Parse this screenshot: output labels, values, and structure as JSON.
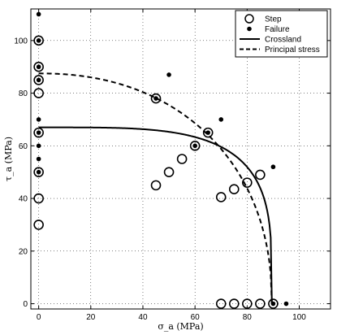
{
  "chart_data": {
    "type": "scatter",
    "xlabel": "σ_a (MPa)",
    "ylabel": "τ_a (MPa)",
    "xlim": [
      -3,
      112
    ],
    "ylim": [
      -2,
      112
    ],
    "xticks": [
      0,
      20,
      40,
      60,
      80,
      100
    ],
    "yticks": [
      0,
      20,
      40,
      60,
      80,
      100
    ],
    "grid": true,
    "grid_style": "dotted",
    "legend_position": "top-right",
    "series": [
      {
        "name": "Step",
        "marker": "open-circle",
        "points": [
          [
            0,
            100
          ],
          [
            0,
            90
          ],
          [
            0,
            85
          ],
          [
            0,
            80
          ],
          [
            0,
            65
          ],
          [
            0,
            50
          ],
          [
            0,
            40
          ],
          [
            0,
            30
          ],
          [
            45,
            78
          ],
          [
            45,
            45
          ],
          [
            50,
            50
          ],
          [
            55,
            55
          ],
          [
            60,
            60
          ],
          [
            65,
            65
          ],
          [
            70,
            40.5
          ],
          [
            75,
            43.5
          ],
          [
            80,
            46
          ],
          [
            85,
            49
          ],
          [
            70,
            0
          ],
          [
            75,
            0
          ],
          [
            80,
            0
          ],
          [
            85,
            0
          ],
          [
            90,
            0
          ]
        ]
      },
      {
        "name": "Failure",
        "marker": "filled-dot",
        "points": [
          [
            0,
            110
          ],
          [
            0,
            100
          ],
          [
            0,
            90
          ],
          [
            0,
            85
          ],
          [
            0,
            70
          ],
          [
            0,
            65
          ],
          [
            0,
            60
          ],
          [
            0,
            55
          ],
          [
            0,
            50
          ],
          [
            45,
            78
          ],
          [
            50,
            87
          ],
          [
            60,
            60
          ],
          [
            65,
            65
          ],
          [
            70,
            70
          ],
          [
            90,
            52
          ],
          [
            90,
            0
          ],
          [
            95,
            0
          ]
        ]
      },
      {
        "name": "Crossland",
        "line": "solid",
        "curve": {
          "y_at_x0": 67,
          "x_at_y0": 89.5,
          "exponent": 4
        }
      },
      {
        "name": "Principal stress",
        "line": "dashed",
        "curve": {
          "y_at_x0": 87.5,
          "x_at_y0": 89.5,
          "exponent": 2.2
        }
      }
    ]
  }
}
